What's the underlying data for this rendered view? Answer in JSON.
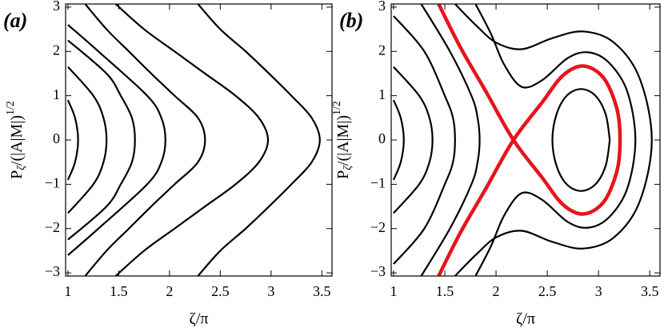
{
  "chart_data": [
    {
      "type": "line",
      "panel_label": "(a)",
      "x_label": "ζ/π",
      "y_label": {
        "base": "P",
        "sub": "ζ",
        "mid": "/(|A|M|)",
        "sup": "1/2"
      },
      "xlim": [
        0.977,
        3.6
      ],
      "ylim": [
        -3.07,
        3.07
      ],
      "xticks": [
        1,
        1.5,
        2,
        2.5,
        3,
        3.5
      ],
      "yticks": [
        {
          "value": -3,
          "label": "−3"
        },
        {
          "value": -2,
          "label": "−2"
        },
        {
          "value": -1,
          "label": "−1"
        },
        0,
        1,
        2,
        3
      ],
      "series": [
        {
          "color": "#000000",
          "x": [
            1.0,
            1.07,
            1.1,
            1.07,
            1.0
          ],
          "values": [
            -0.9,
            -0.5,
            0,
            0.5,
            0.9
          ]
        },
        {
          "color": "#000000",
          "x": [
            1.0,
            1.25,
            1.35,
            1.38,
            1.35,
            1.25,
            1.0
          ],
          "values": [
            -1.65,
            -1,
            -0.5,
            0,
            0.5,
            1,
            1.65
          ]
        },
        {
          "color": "#000000",
          "x": [
            1.0,
            1.38,
            1.52,
            1.63,
            1.66,
            1.63,
            1.52,
            1.38,
            1.0
          ],
          "values": [
            -2.25,
            -1.5,
            -1,
            -0.5,
            0,
            0.5,
            1,
            1.5,
            2.25
          ]
        },
        {
          "color": "#000000",
          "x": [
            1.0,
            1.3,
            1.78,
            1.92,
            1.96,
            1.92,
            1.78,
            1.3,
            1.0
          ],
          "values": [
            -2.6,
            -2,
            -1,
            -0.5,
            0,
            0.5,
            1,
            2,
            2.6
          ]
        },
        {
          "color": "#000000",
          "x": [
            1.17,
            1.38,
            1.6,
            1.82,
            2.05,
            2.28,
            2.35,
            2.28,
            2.05,
            1.82,
            1.6,
            1.38,
            1.17
          ],
          "values": [
            -3.07,
            -2.5,
            -2,
            -1.5,
            -1,
            -0.5,
            0,
            0.5,
            1,
            1.5,
            2,
            2.5,
            3.07
          ]
        },
        {
          "color": "#000000",
          "x": [
            1.47,
            1.75,
            2.05,
            2.35,
            2.65,
            2.88,
            2.97,
            2.88,
            2.65,
            2.35,
            2.05,
            1.75,
            1.47
          ],
          "values": [
            -3.07,
            -2.5,
            -2,
            -1.5,
            -1,
            -0.5,
            0,
            0.5,
            1,
            1.5,
            2,
            2.5,
            3.07
          ]
        },
        {
          "color": "#000000",
          "x": [
            2.28,
            2.5,
            2.75,
            2.98,
            3.2,
            3.4,
            3.48,
            3.4,
            3.2,
            2.98,
            2.75,
            2.5,
            2.28
          ],
          "values": [
            -3.07,
            -2.5,
            -2,
            -1.5,
            -1,
            -0.5,
            0,
            0.5,
            1,
            1.5,
            2,
            2.5,
            3.07
          ]
        }
      ]
    },
    {
      "type": "line",
      "panel_label": "(b)",
      "x_label": "ζ/π",
      "y_label": {
        "base": "P",
        "sub": "ζ",
        "mid": "/(|A|M|)",
        "sup": "1/2"
      },
      "xlim": [
        0.977,
        3.6
      ],
      "ylim": [
        -3.07,
        3.07
      ],
      "xticks": [
        1,
        1.5,
        2,
        2.5,
        3,
        3.5
      ],
      "yticks": [
        {
          "value": -3,
          "label": "−3"
        },
        {
          "value": -2,
          "label": "−2"
        },
        {
          "value": -1,
          "label": "−1"
        },
        0,
        1,
        2,
        3
      ],
      "series": [
        {
          "color": "#000000",
          "x": [
            1.0,
            1.07,
            1.1,
            1.07,
            1.0
          ],
          "values": [
            -0.9,
            -0.5,
            0,
            0.5,
            0.9
          ]
        },
        {
          "color": "#000000",
          "x": [
            1.0,
            1.25,
            1.35,
            1.38,
            1.35,
            1.25,
            1.0
          ],
          "values": [
            -1.65,
            -1,
            -0.5,
            0,
            0.5,
            1,
            1.65
          ]
        },
        {
          "color": "#000000",
          "x": [
            1.0,
            1.3,
            1.5,
            1.58,
            1.6,
            1.58,
            1.5,
            1.3,
            1.0
          ],
          "values": [
            -2.8,
            -2,
            -1,
            -0.5,
            0,
            0.5,
            1,
            2,
            2.8
          ]
        },
        {
          "color": "#000000",
          "x": [
            1.27,
            1.55,
            1.76,
            1.82,
            1.84,
            1.82,
            1.76,
            1.55,
            1.27
          ],
          "values": [
            -3.07,
            -2,
            -1,
            -0.5,
            0,
            0.5,
            1,
            2,
            3.07
          ]
        },
        {
          "color": "#000000",
          "x": [
            1.8,
            1.95,
            2.08,
            2.25,
            2.45,
            2.7,
            2.9,
            3.1,
            3.28,
            3.36,
            3.28,
            3.1,
            2.9,
            2.7,
            2.45,
            2.25,
            2.08,
            1.95,
            1.8
          ],
          "values": [
            3.07,
            2.4,
            1.7,
            1.2,
            1.35,
            1.85,
            1.98,
            1.75,
            1.1,
            0,
            -1.1,
            -1.75,
            -1.98,
            -1.85,
            -1.35,
            -1.2,
            -1.7,
            -2.4,
            -3.07
          ]
        },
        {
          "color": "#000000",
          "x": [
            1.6,
            1.8,
            2.0,
            2.25,
            2.55,
            2.85,
            3.15,
            3.4,
            3.52,
            3.4,
            3.15,
            2.85,
            2.55,
            2.25,
            2.0,
            1.8,
            1.6
          ],
          "values": [
            3.07,
            2.6,
            2.2,
            2.05,
            2.3,
            2.45,
            2.2,
            1.4,
            0,
            -1.4,
            -2.2,
            -2.45,
            -2.3,
            -2.05,
            -2.2,
            -2.6,
            -3.07
          ]
        },
        {
          "color": "#000000",
          "x": [
            3.11,
            3.07,
            2.97,
            2.83,
            2.69,
            2.59,
            2.55,
            2.59,
            2.69,
            2.83,
            2.97,
            3.07,
            3.11
          ],
          "values": [
            0,
            0.58,
            1.0,
            1.15,
            1.0,
            0.58,
            0,
            -0.58,
            -1.0,
            -1.15,
            -1.0,
            -0.58,
            0
          ]
        },
        {
          "color": "#e8141c",
          "x": [
            1.44,
            1.65,
            1.9,
            2.17,
            2.45,
            2.65,
            2.85,
            3.05,
            3.18,
            3.21,
            3.18,
            3.05,
            2.85,
            2.65,
            2.45,
            2.17,
            1.9,
            1.65,
            1.44
          ],
          "values": [
            3.07,
            2.1,
            1.1,
            0,
            -0.85,
            -1.45,
            -1.67,
            -1.4,
            -0.7,
            0,
            0.7,
            1.4,
            1.67,
            1.45,
            0.85,
            0,
            -1.1,
            -2.1,
            -3.07
          ]
        }
      ]
    }
  ]
}
